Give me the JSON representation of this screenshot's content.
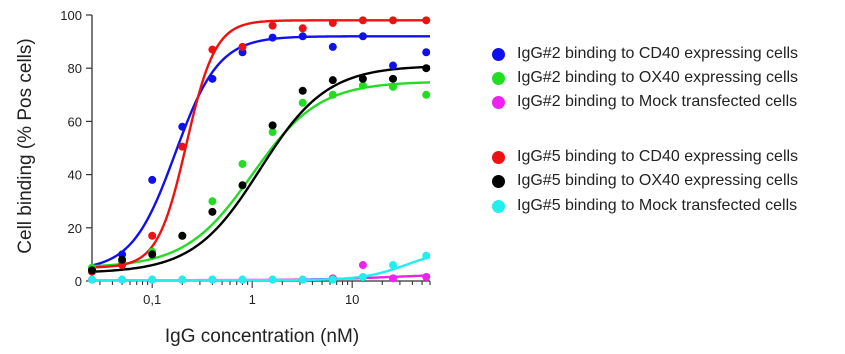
{
  "chart_data": {
    "type": "scatter",
    "title": "",
    "xlabel": "IgG concentration (nM)",
    "ylabel": "Cell binding (% Pos cells)",
    "xscale": "log",
    "xlim": [
      0.025,
      60
    ],
    "ylim": [
      0,
      100
    ],
    "x_ticks": [
      {
        "value": 0.1,
        "label": "0,1"
      },
      {
        "value": 1,
        "label": "1"
      },
      {
        "value": 10,
        "label": "10"
      }
    ],
    "y_ticks": [
      {
        "value": 0,
        "label": "0"
      },
      {
        "value": 20,
        "label": "20"
      },
      {
        "value": 40,
        "label": "40"
      },
      {
        "value": 60,
        "label": "60"
      },
      {
        "value": 80,
        "label": "80"
      },
      {
        "value": 100,
        "label": "100"
      }
    ],
    "x": [
      0.025,
      0.05,
      0.1,
      0.2,
      0.4,
      0.8,
      1.6,
      3.2,
      6.4,
      12.8,
      25.6,
      55
    ],
    "legend_position": "right",
    "grid": false,
    "series": [
      {
        "name": "IgG#2 binding to CD40 expressing cells",
        "color": "#1010ee",
        "values": [
          4.5,
          10,
          38,
          58,
          76,
          86,
          91.5,
          92,
          88,
          92,
          81,
          86
        ],
        "fit": {
          "bottom": 4,
          "top": 92,
          "ec50": 0.17,
          "hill": 2.0
        }
      },
      {
        "name": "IgG#2 binding to OX40 expressing cells",
        "color": "#22dd22",
        "values": [
          5,
          7,
          11,
          17,
          30,
          44,
          56,
          67,
          70,
          73.5,
          73,
          70
        ],
        "fit": {
          "bottom": 5,
          "top": 75,
          "ec50": 1.0,
          "hill": 1.3
        }
      },
      {
        "name": "IgG#2 binding to Mock transfected cells",
        "color": "#ee22ee",
        "values": [
          0.5,
          0.5,
          0.5,
          0.5,
          0.5,
          0.5,
          0.5,
          0.5,
          1,
          6,
          1,
          1.5
        ],
        "fit": {
          "bottom": 0.3,
          "top": 3,
          "ec50": 30,
          "hill": 1.0
        }
      },
      {
        "name": "IgG#5 binding to CD40 expressing cells",
        "color": "#ee1111",
        "values": [
          3.5,
          6,
          17,
          50.5,
          87,
          88,
          96,
          95,
          97,
          98,
          98,
          98
        ],
        "fit": {
          "bottom": 5,
          "top": 98,
          "ec50": 0.22,
          "hill": 3.0
        }
      },
      {
        "name": "IgG#5 binding to OX40 expressing cells",
        "color": "#000000",
        "values": [
          4,
          8,
          10,
          17,
          26,
          36,
          58.5,
          71.5,
          75.5,
          76,
          76,
          80
        ],
        "fit": {
          "bottom": 3,
          "top": 81,
          "ec50": 1.2,
          "hill": 1.3
        }
      },
      {
        "name": "IgG#5 binding to Mock transfected cells",
        "color": "#22eeee",
        "values": [
          0.5,
          0.5,
          0.5,
          0.5,
          0.5,
          0.5,
          0.5,
          0.5,
          0.5,
          1.5,
          6,
          9.5
        ],
        "fit": {
          "bottom": 0.3,
          "top": 12,
          "ec50": 35,
          "hill": 2.0
        }
      }
    ]
  }
}
